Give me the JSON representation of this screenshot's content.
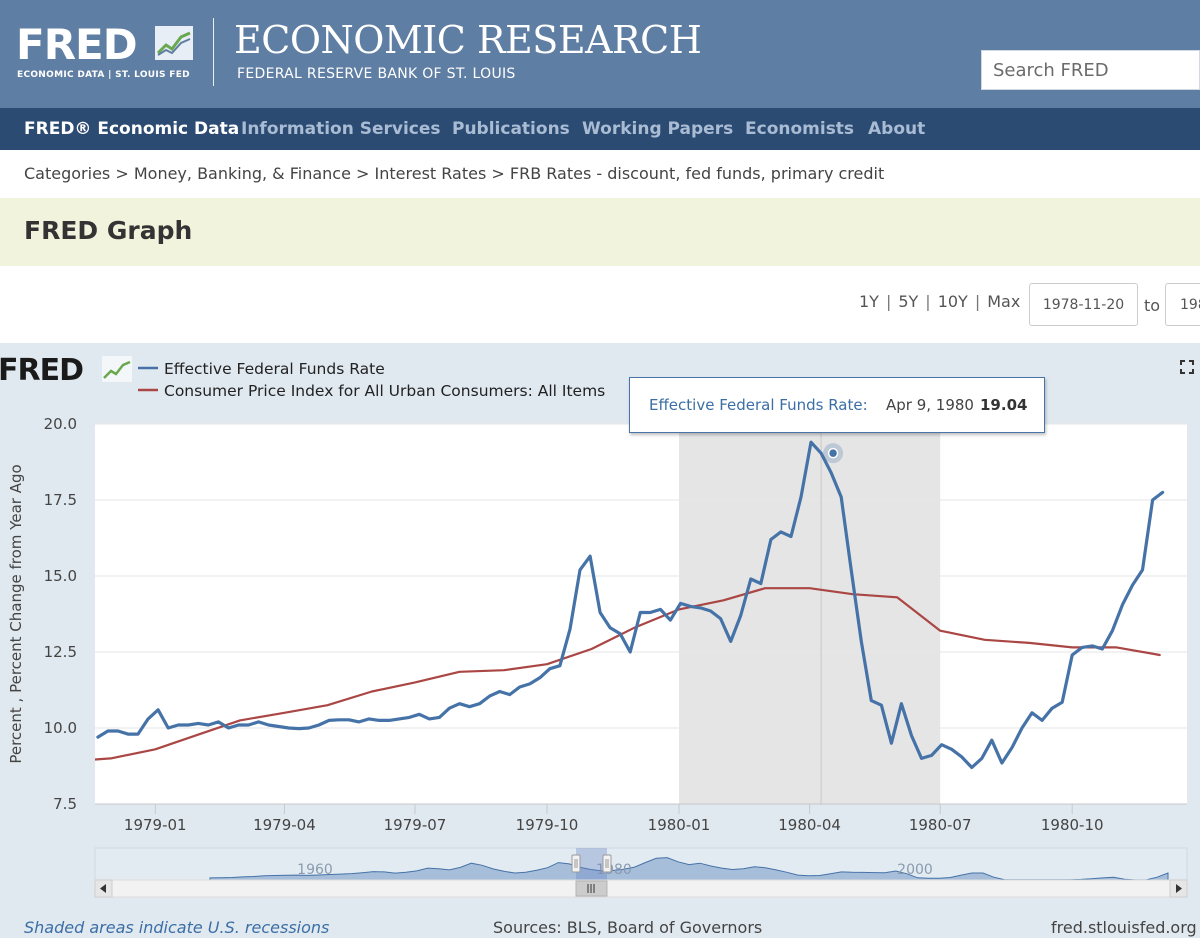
{
  "header": {
    "logo_text": "FRED",
    "logo_subtitle": "ECONOMIC DATA  |  ST. LOUIS FED",
    "title": "ECONOMIC RESEARCH",
    "subtitle": "FEDERAL RESERVE BANK OF ST. LOUIS",
    "search_placeholder": "Search FRED"
  },
  "nav": [
    {
      "label": "FRED® Economic Data"
    },
    {
      "label": "Information Services"
    },
    {
      "label": "Publications"
    },
    {
      "label": "Working Papers"
    },
    {
      "label": "Economists"
    },
    {
      "label": "About"
    }
  ],
  "breadcrumb": [
    "Categories",
    "Money, Banking, & Finance",
    "Interest Rates",
    "FRB Rates - discount, fed funds, primary credit"
  ],
  "breadcrumb_separator": ">",
  "page_title": "FRED Graph",
  "range": {
    "buttons": [
      "1Y",
      "5Y",
      "10Y",
      "Max"
    ],
    "start_date": "1978-11-20",
    "to_label": "to",
    "end_date": "198"
  },
  "tooltip": {
    "series_name": "Effective Federal Funds Rate:",
    "date": "Apr 9, 1980",
    "value": "19.04"
  },
  "footer": {
    "recession_note": "Shaded areas indicate U.S. recessions",
    "sources": "Sources: BLS, Board of Governors",
    "url": "fred.stlouisfed.org"
  },
  "colors": {
    "header_bg": "#5f7ea3",
    "nav_bg": "#2c4b73",
    "series_fedfunds": "#4572a7",
    "series_cpi": "#aa4643",
    "recession_shade": "#e5e5e5",
    "panel_bg": "#e1e9f0"
  },
  "icons": [
    "fred-logo-chart-icon",
    "fullscreen-icon",
    "scroll-left-icon",
    "scroll-right-icon",
    "scroll-thumb-grip-icon"
  ],
  "chart_data": {
    "type": "line",
    "logo": "FRED",
    "ylabel": "Percent , Percent Change from Year Ago",
    "ylim": [
      7.5,
      20.0
    ],
    "yticks": [
      "7.5",
      "10.0",
      "12.5",
      "15.0",
      "17.5",
      "20.0"
    ],
    "xlim": [
      "1978-11-20",
      "1980-12-20"
    ],
    "xticks": [
      "1979-01",
      "1979-04",
      "1979-07",
      "1979-10",
      "1980-01",
      "1980-04",
      "1980-07",
      "1980-10"
    ],
    "recession": [
      "1980-01-01",
      "1980-07-01"
    ],
    "hover_date": "1980-04-09",
    "grid": "horizontal",
    "legend_position": "top-left",
    "series": [
      {
        "name": "Effective Federal Funds Rate",
        "points": [
          [
            "1978-11-22",
            9.7
          ],
          [
            "1978-11-29",
            9.9
          ],
          [
            "1978-12-06",
            9.9
          ],
          [
            "1978-12-13",
            9.8
          ],
          [
            "1978-12-20",
            9.8
          ],
          [
            "1978-12-27",
            10.3
          ],
          [
            "1979-01-03",
            10.6
          ],
          [
            "1979-01-10",
            10.0
          ],
          [
            "1979-01-17",
            10.1
          ],
          [
            "1979-01-24",
            10.1
          ],
          [
            "1979-01-31",
            10.15
          ],
          [
            "1979-02-07",
            10.1
          ],
          [
            "1979-02-14",
            10.2
          ],
          [
            "1979-02-21",
            10.0
          ],
          [
            "1979-02-28",
            10.1
          ],
          [
            "1979-03-07",
            10.1
          ],
          [
            "1979-03-14",
            10.2
          ],
          [
            "1979-03-21",
            10.1
          ],
          [
            "1979-03-28",
            10.05
          ],
          [
            "1979-04-04",
            10.0
          ],
          [
            "1979-04-11",
            9.98
          ],
          [
            "1979-04-18",
            10.0
          ],
          [
            "1979-04-25",
            10.1
          ],
          [
            "1979-05-02",
            10.25
          ],
          [
            "1979-05-09",
            10.27
          ],
          [
            "1979-05-16",
            10.27
          ],
          [
            "1979-05-23",
            10.2
          ],
          [
            "1979-05-30",
            10.3
          ],
          [
            "1979-06-06",
            10.25
          ],
          [
            "1979-06-13",
            10.25
          ],
          [
            "1979-06-20",
            10.3
          ],
          [
            "1979-06-27",
            10.35
          ],
          [
            "1979-07-04",
            10.45
          ],
          [
            "1979-07-11",
            10.3
          ],
          [
            "1979-07-18",
            10.35
          ],
          [
            "1979-07-25",
            10.65
          ],
          [
            "1979-08-01",
            10.8
          ],
          [
            "1979-08-08",
            10.7
          ],
          [
            "1979-08-15",
            10.8
          ],
          [
            "1979-08-22",
            11.05
          ],
          [
            "1979-08-29",
            11.2
          ],
          [
            "1979-09-05",
            11.1
          ],
          [
            "1979-09-12",
            11.35
          ],
          [
            "1979-09-19",
            11.45
          ],
          [
            "1979-09-26",
            11.65
          ],
          [
            "1979-10-03",
            11.95
          ],
          [
            "1979-10-10",
            12.05
          ],
          [
            "1979-10-17",
            13.25
          ],
          [
            "1979-10-24",
            15.2
          ],
          [
            "1979-10-31",
            15.65
          ],
          [
            "1979-11-07",
            13.8
          ],
          [
            "1979-11-14",
            13.3
          ],
          [
            "1979-11-21",
            13.1
          ],
          [
            "1979-11-28",
            12.5
          ],
          [
            "1979-12-05",
            13.8
          ],
          [
            "1979-12-12",
            13.8
          ],
          [
            "1979-12-19",
            13.9
          ],
          [
            "1979-12-26",
            13.55
          ],
          [
            "1980-01-02",
            14.1
          ],
          [
            "1980-01-09",
            14.0
          ],
          [
            "1980-01-16",
            13.95
          ],
          [
            "1980-01-23",
            13.85
          ],
          [
            "1980-01-30",
            13.6
          ],
          [
            "1980-02-06",
            12.85
          ],
          [
            "1980-02-13",
            13.7
          ],
          [
            "1980-02-20",
            14.9
          ],
          [
            "1980-02-27",
            14.75
          ],
          [
            "1980-03-05",
            16.2
          ],
          [
            "1980-03-12",
            16.45
          ],
          [
            "1980-03-19",
            16.3
          ],
          [
            "1980-03-26",
            17.6
          ],
          [
            "1980-04-02",
            19.4
          ],
          [
            "1980-04-09",
            19.04
          ],
          [
            "1980-04-16",
            18.4
          ],
          [
            "1980-04-23",
            17.6
          ],
          [
            "1980-04-30",
            15.2
          ],
          [
            "1980-05-07",
            12.85
          ],
          [
            "1980-05-14",
            10.9
          ],
          [
            "1980-05-21",
            10.75
          ],
          [
            "1980-05-28",
            9.5
          ],
          [
            "1980-06-04",
            10.8
          ],
          [
            "1980-06-11",
            9.75
          ],
          [
            "1980-06-18",
            9.0
          ],
          [
            "1980-06-25",
            9.1
          ],
          [
            "1980-07-02",
            9.45
          ],
          [
            "1980-07-09",
            9.3
          ],
          [
            "1980-07-16",
            9.05
          ],
          [
            "1980-07-23",
            8.7
          ],
          [
            "1980-07-30",
            9.0
          ],
          [
            "1980-08-06",
            9.6
          ],
          [
            "1980-08-13",
            8.85
          ],
          [
            "1980-08-20",
            9.35
          ],
          [
            "1980-08-27",
            10.0
          ],
          [
            "1980-09-03",
            10.5
          ],
          [
            "1980-09-10",
            10.25
          ],
          [
            "1980-09-17",
            10.65
          ],
          [
            "1980-09-24",
            10.85
          ],
          [
            "1980-10-01",
            12.4
          ],
          [
            "1980-10-08",
            12.65
          ],
          [
            "1980-10-15",
            12.7
          ],
          [
            "1980-10-22",
            12.6
          ],
          [
            "1980-10-29",
            13.2
          ],
          [
            "1980-11-05",
            14.05
          ],
          [
            "1980-11-12",
            14.7
          ],
          [
            "1980-11-19",
            15.2
          ],
          [
            "1980-11-26",
            17.5
          ],
          [
            "1980-12-03",
            17.75
          ]
        ]
      },
      {
        "name": "Consumer Price Index for All Urban Consumers: All Items",
        "points": [
          [
            "1978-11-01",
            8.9
          ],
          [
            "1978-12-01",
            9.0
          ],
          [
            "1979-01-01",
            9.3
          ],
          [
            "1979-02-01",
            9.8
          ],
          [
            "1979-03-01",
            10.25
          ],
          [
            "1979-04-01",
            10.5
          ],
          [
            "1979-05-01",
            10.75
          ],
          [
            "1979-06-01",
            11.2
          ],
          [
            "1979-07-01",
            11.5
          ],
          [
            "1979-08-01",
            11.85
          ],
          [
            "1979-09-01",
            11.9
          ],
          [
            "1979-10-01",
            12.1
          ],
          [
            "1979-11-01",
            12.6
          ],
          [
            "1979-12-01",
            13.3
          ],
          [
            "1980-01-01",
            13.9
          ],
          [
            "1980-02-01",
            14.2
          ],
          [
            "1980-03-01",
            14.6
          ],
          [
            "1980-04-01",
            14.6
          ],
          [
            "1980-05-01",
            14.4
          ],
          [
            "1980-06-01",
            14.3
          ],
          [
            "1980-07-01",
            13.2
          ],
          [
            "1980-08-01",
            12.9
          ],
          [
            "1980-09-01",
            12.8
          ],
          [
            "1980-10-01",
            12.65
          ],
          [
            "1980-11-01",
            12.65
          ],
          [
            "1980-12-01",
            12.4
          ]
        ]
      }
    ],
    "navigator": {
      "labels": [
        "1960",
        "1980",
        "2000"
      ],
      "values": [
        1.5,
        1.6,
        1.8,
        2.2,
        2.5,
        3.0,
        3.2,
        3.4,
        3.5,
        3.3,
        3.6,
        3.9,
        4.2,
        4.6,
        5.2,
        6.0,
        5.8,
        4.9,
        5.5,
        6.5,
        8.5,
        8.0,
        7.2,
        9.0,
        12.0,
        10.5,
        7.9,
        6.2,
        5.0,
        5.5,
        7.0,
        8.8,
        12.4,
        11.5,
        9.0,
        7.5,
        6.5,
        6.8,
        7.7,
        9.2,
        12.5,
        15.5,
        16.0,
        13.0,
        11.0,
        12.0,
        10.0,
        8.5,
        7.5,
        8.0,
        9.5,
        8.8,
        7.2,
        5.5,
        3.5,
        3.0,
        3.2,
        4.5,
        5.8,
        5.5,
        5.4,
        5.3,
        5.2,
        6.4,
        4.5,
        1.6,
        1.3,
        1.2,
        1.8,
        3.5,
        5.0,
        5.0,
        2.0,
        0.2,
        0.15,
        0.15,
        0.15,
        0.15,
        0.15,
        0.2,
        0.4,
        0.9,
        1.5,
        2.0,
        0.5,
        0.1,
        0.1,
        2.0,
        5.0
      ]
    }
  }
}
